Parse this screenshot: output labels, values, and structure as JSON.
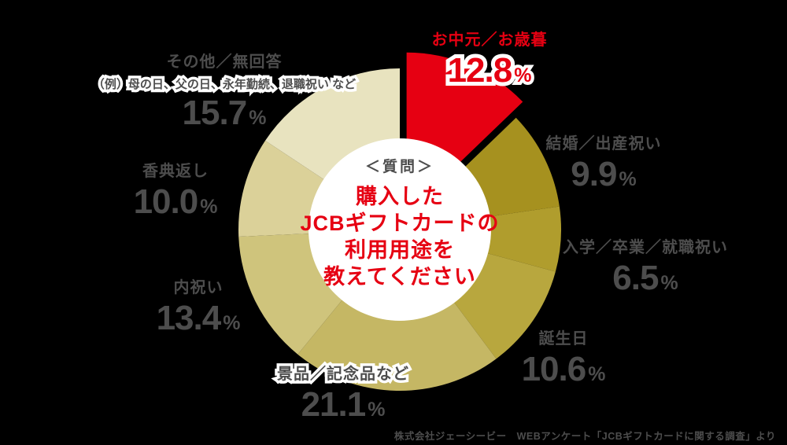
{
  "percent_sign": "%",
  "chart_data": {
    "type": "pie",
    "style": "donut",
    "title": "購入したJCBギフトカードの利用用途を教えてください",
    "center_tag": "＜質問＞",
    "center_lines": [
      "購入した",
      "JCBギフトカードの",
      "利用用途を",
      "教えてください"
    ],
    "legend_position": "around",
    "start_angle_deg": 0,
    "direction": "clockwise",
    "segments": [
      {
        "label": "お中元／お歳暮",
        "value": 12.8,
        "value_label": "12.8",
        "color": "#e60012",
        "highlighted": true
      },
      {
        "label": "結婚／出産祝い",
        "value": 9.9,
        "value_label": "9.9",
        "color": "#a6911f"
      },
      {
        "label": "入学／卒業／就職祝い",
        "value": 6.5,
        "value_label": "6.5",
        "color": "#b09d2d"
      },
      {
        "label": "誕生日",
        "value": 10.6,
        "value_label": "10.6",
        "color": "#b8a73e"
      },
      {
        "label": "景品／記念品など",
        "value": 21.1,
        "value_label": "21.1",
        "color": "#c5b764"
      },
      {
        "label": "内祝い",
        "value": 13.4,
        "value_label": "13.4",
        "color": "#cfc47c"
      },
      {
        "label": "香典返し",
        "value": 10.0,
        "value_label": "10.0",
        "color": "#dbd199"
      },
      {
        "label": "その他／無回答",
        "value": 15.7,
        "value_label": "15.7",
        "color": "#e8e3bf",
        "note": "（例）母の日、父の日、永年勤続、退職祝い など"
      }
    ]
  },
  "footer": {
    "source": "株式会社ジェーシービー　WEBアンケート「JCBギフトカードに関する調査」より"
  },
  "colors": {
    "highlight": "#e60012",
    "text": "#4d4d4d",
    "background": "#000000",
    "center_circle": "#ffffff"
  }
}
